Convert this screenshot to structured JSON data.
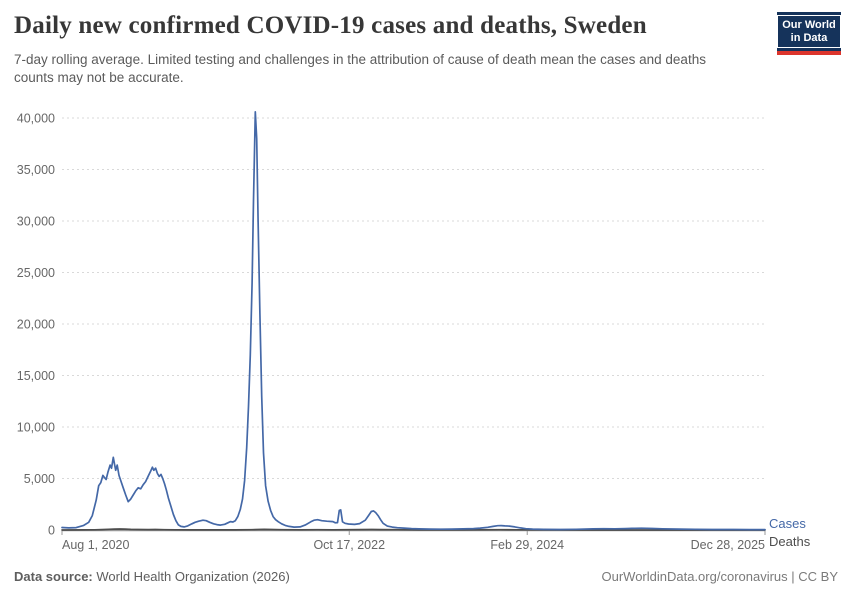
{
  "header": {
    "title": "Daily new confirmed COVID-19 cases and deaths, Sweden",
    "subtitle": "7-day rolling average. Limited testing and challenges in the attribution of cause of death mean the cases and deaths counts may not be accurate.",
    "logo": {
      "line1": "Our World",
      "line2": "in Data",
      "bg_color": "#15335b",
      "stripe_color": "#dc352c"
    }
  },
  "footer": {
    "datasource_label": "Data source:",
    "datasource_rest": " World Health Organization (2026)",
    "credit": "OurWorldinData.org/coronavirus | CC BY"
  },
  "chart_data": {
    "type": "line",
    "title": "Daily new confirmed COVID-19 cases and deaths, Sweden",
    "xlabel": "",
    "ylabel": "",
    "x_range": [
      "2020-08-01",
      "2025-12-28"
    ],
    "ylim": [
      0,
      40000
    ],
    "grid": "horizontal-dashed",
    "legend_position": "line-end-labels-right",
    "y_ticks": [
      {
        "value": 0,
        "label": "0"
      },
      {
        "value": 5000,
        "label": "5,000"
      },
      {
        "value": 10000,
        "label": "10,000"
      },
      {
        "value": 15000,
        "label": "15,000"
      },
      {
        "value": 20000,
        "label": "20,000"
      },
      {
        "value": 25000,
        "label": "25,000"
      },
      {
        "value": 30000,
        "label": "30,000"
      },
      {
        "value": 35000,
        "label": "35,000"
      },
      {
        "value": 40000,
        "label": "40,000"
      }
    ],
    "x_ticks": [
      {
        "date": "2020-08-01",
        "label": "Aug 1, 2020",
        "align": "left"
      },
      {
        "date": "2022-10-17",
        "label": "Oct 17, 2022",
        "align": "center"
      },
      {
        "date": "2024-02-29",
        "label": "Feb 29, 2024",
        "align": "center"
      },
      {
        "date": "2025-12-28",
        "label": "Dec 28, 2025",
        "align": "right"
      }
    ],
    "series": [
      {
        "name": "Cases",
        "color": "#4468a7",
        "points": [
          [
            "2020-08-01",
            240
          ],
          [
            "2020-08-20",
            200
          ],
          [
            "2020-09-10",
            230
          ],
          [
            "2020-10-01",
            450
          ],
          [
            "2020-10-15",
            750
          ],
          [
            "2020-10-25",
            1400
          ],
          [
            "2020-11-05",
            2900
          ],
          [
            "2020-11-12",
            4300
          ],
          [
            "2020-11-18",
            4600
          ],
          [
            "2020-11-24",
            5300
          ],
          [
            "2020-11-28",
            5100
          ],
          [
            "2020-12-03",
            4900
          ],
          [
            "2020-12-08",
            5600
          ],
          [
            "2020-12-14",
            6300
          ],
          [
            "2020-12-18",
            6000
          ],
          [
            "2020-12-23",
            7050
          ],
          [
            "2020-12-27",
            6300
          ],
          [
            "2020-12-30",
            5800
          ],
          [
            "2021-01-03",
            6300
          ],
          [
            "2021-01-08",
            5300
          ],
          [
            "2021-01-14",
            4700
          ],
          [
            "2021-01-20",
            4100
          ],
          [
            "2021-01-27",
            3400
          ],
          [
            "2021-02-03",
            2750
          ],
          [
            "2021-02-10",
            3000
          ],
          [
            "2021-02-17",
            3400
          ],
          [
            "2021-02-24",
            3800
          ],
          [
            "2021-03-03",
            4100
          ],
          [
            "2021-03-10",
            4000
          ],
          [
            "2021-03-17",
            4400
          ],
          [
            "2021-03-24",
            4700
          ],
          [
            "2021-03-31",
            5200
          ],
          [
            "2021-04-07",
            5700
          ],
          [
            "2021-04-12",
            6100
          ],
          [
            "2021-04-16",
            5800
          ],
          [
            "2021-04-21",
            6000
          ],
          [
            "2021-04-26",
            5500
          ],
          [
            "2021-05-01",
            5200
          ],
          [
            "2021-05-06",
            5400
          ],
          [
            "2021-05-11",
            5000
          ],
          [
            "2021-05-16",
            4500
          ],
          [
            "2021-05-21",
            3900
          ],
          [
            "2021-05-27",
            3100
          ],
          [
            "2021-06-03",
            2300
          ],
          [
            "2021-06-10",
            1500
          ],
          [
            "2021-06-17",
            900
          ],
          [
            "2021-06-24",
            500
          ],
          [
            "2021-07-01",
            350
          ],
          [
            "2021-07-10",
            300
          ],
          [
            "2021-07-20",
            400
          ],
          [
            "2021-08-01",
            600
          ],
          [
            "2021-08-10",
            750
          ],
          [
            "2021-08-20",
            850
          ],
          [
            "2021-09-01",
            950
          ],
          [
            "2021-09-10",
            900
          ],
          [
            "2021-09-20",
            750
          ],
          [
            "2021-10-01",
            600
          ],
          [
            "2021-10-10",
            520
          ],
          [
            "2021-10-20",
            480
          ],
          [
            "2021-11-01",
            550
          ],
          [
            "2021-11-10",
            700
          ],
          [
            "2021-11-17",
            820
          ],
          [
            "2021-11-24",
            780
          ],
          [
            "2021-12-01",
            900
          ],
          [
            "2021-12-08",
            1300
          ],
          [
            "2021-12-15",
            2000
          ],
          [
            "2021-12-21",
            3000
          ],
          [
            "2021-12-27",
            4800
          ],
          [
            "2022-01-02",
            8000
          ],
          [
            "2022-01-07",
            12000
          ],
          [
            "2022-01-12",
            17000
          ],
          [
            "2022-01-17",
            24000
          ],
          [
            "2022-01-21",
            32000
          ],
          [
            "2022-01-26",
            40600
          ],
          [
            "2022-01-30",
            38000
          ],
          [
            "2022-02-03",
            30000
          ],
          [
            "2022-02-08",
            21000
          ],
          [
            "2022-02-13",
            13000
          ],
          [
            "2022-02-18",
            7500
          ],
          [
            "2022-02-24",
            4300
          ],
          [
            "2022-03-03",
            2800
          ],
          [
            "2022-03-10",
            1900
          ],
          [
            "2022-03-17",
            1300
          ],
          [
            "2022-03-24",
            1000
          ],
          [
            "2022-04-01",
            800
          ],
          [
            "2022-04-10",
            600
          ],
          [
            "2022-04-20",
            450
          ],
          [
            "2022-05-01",
            350
          ],
          [
            "2022-05-15",
            280
          ],
          [
            "2022-06-01",
            300
          ],
          [
            "2022-06-15",
            480
          ],
          [
            "2022-07-01",
            800
          ],
          [
            "2022-07-10",
            950
          ],
          [
            "2022-07-20",
            1000
          ],
          [
            "2022-08-01",
            900
          ],
          [
            "2022-08-15",
            850
          ],
          [
            "2022-09-01",
            820
          ],
          [
            "2022-09-08",
            700
          ],
          [
            "2022-09-14",
            720
          ],
          [
            "2022-09-19",
            1900
          ],
          [
            "2022-09-23",
            1950
          ],
          [
            "2022-09-28",
            800
          ],
          [
            "2022-10-05",
            650
          ],
          [
            "2022-10-15",
            580
          ],
          [
            "2022-11-01",
            540
          ],
          [
            "2022-11-15",
            620
          ],
          [
            "2022-12-01",
            950
          ],
          [
            "2022-12-10",
            1400
          ],
          [
            "2022-12-18",
            1800
          ],
          [
            "2022-12-24",
            1850
          ],
          [
            "2022-12-30",
            1700
          ],
          [
            "2023-01-06",
            1400
          ],
          [
            "2023-01-13",
            1000
          ],
          [
            "2023-01-20",
            650
          ],
          [
            "2023-02-01",
            380
          ],
          [
            "2023-02-15",
            280
          ],
          [
            "2023-03-01",
            220
          ],
          [
            "2023-03-20",
            180
          ],
          [
            "2023-04-10",
            140
          ],
          [
            "2023-05-01",
            110
          ],
          [
            "2023-06-01",
            90
          ],
          [
            "2023-07-01",
            80
          ],
          [
            "2023-08-01",
            90
          ],
          [
            "2023-09-01",
            110
          ],
          [
            "2023-10-01",
            140
          ],
          [
            "2023-10-20",
            180
          ],
          [
            "2023-11-10",
            260
          ],
          [
            "2023-11-25",
            350
          ],
          [
            "2023-12-08",
            420
          ],
          [
            "2023-12-18",
            430
          ],
          [
            "2023-12-28",
            400
          ],
          [
            "2024-01-10",
            380
          ],
          [
            "2024-01-25",
            300
          ],
          [
            "2024-02-10",
            200
          ],
          [
            "2024-02-25",
            130
          ],
          [
            "2024-03-15",
            90
          ],
          [
            "2024-04-15",
            60
          ],
          [
            "2024-06-01",
            50
          ],
          [
            "2024-07-15",
            70
          ],
          [
            "2024-09-01",
            110
          ],
          [
            "2024-10-01",
            130
          ],
          [
            "2024-11-01",
            120
          ],
          [
            "2024-12-01",
            140
          ],
          [
            "2024-12-20",
            160
          ],
          [
            "2025-01-15",
            170
          ],
          [
            "2025-02-15",
            150
          ],
          [
            "2025-03-15",
            120
          ],
          [
            "2025-05-01",
            90
          ],
          [
            "2025-06-15",
            70
          ],
          [
            "2025-08-01",
            50
          ],
          [
            "2025-10-01",
            45
          ],
          [
            "2025-11-15",
            40
          ],
          [
            "2025-12-28",
            35
          ]
        ]
      },
      {
        "name": "Deaths",
        "color": "#4d4d4d",
        "points": [
          [
            "2020-08-01",
            2
          ],
          [
            "2020-10-01",
            5
          ],
          [
            "2020-11-01",
            15
          ],
          [
            "2020-11-20",
            40
          ],
          [
            "2020-12-10",
            70
          ],
          [
            "2020-12-25",
            90
          ],
          [
            "2021-01-10",
            100
          ],
          [
            "2021-01-25",
            90
          ],
          [
            "2021-02-10",
            60
          ],
          [
            "2021-03-01",
            45
          ],
          [
            "2021-04-01",
            40
          ],
          [
            "2021-04-20",
            45
          ],
          [
            "2021-05-15",
            30
          ],
          [
            "2021-06-15",
            15
          ],
          [
            "2021-08-01",
            8
          ],
          [
            "2021-10-01",
            6
          ],
          [
            "2021-12-01",
            10
          ],
          [
            "2022-01-15",
            30
          ],
          [
            "2022-02-05",
            50
          ],
          [
            "2022-02-20",
            60
          ],
          [
            "2022-03-10",
            45
          ],
          [
            "2022-04-10",
            30
          ],
          [
            "2022-06-01",
            20
          ],
          [
            "2022-07-20",
            30
          ],
          [
            "2022-09-01",
            20
          ],
          [
            "2022-12-20",
            45
          ],
          [
            "2023-01-15",
            40
          ],
          [
            "2023-03-01",
            25
          ],
          [
            "2023-05-01",
            10
          ],
          [
            "2023-09-01",
            8
          ],
          [
            "2023-12-15",
            25
          ],
          [
            "2024-02-01",
            15
          ],
          [
            "2024-05-01",
            5
          ],
          [
            "2024-09-01",
            4
          ],
          [
            "2025-03-01",
            3
          ],
          [
            "2025-12-28",
            2
          ]
        ]
      }
    ]
  }
}
